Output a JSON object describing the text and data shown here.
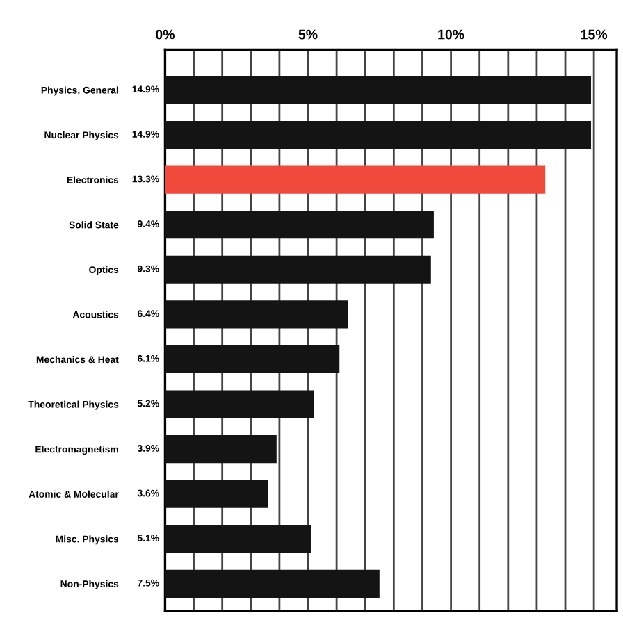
{
  "chart_data": {
    "type": "bar",
    "orientation": "horizontal",
    "categories": [
      "Physics, General",
      "Nuclear Physics",
      "Electronics",
      "Solid State",
      "Optics",
      "Acoustics",
      "Mechanics & Heat",
      "Theoretical Physics",
      "Electromagnetism",
      "Atomic & Molecular",
      "Misc. Physics",
      "Non-Physics"
    ],
    "values": [
      14.9,
      14.9,
      13.3,
      9.4,
      9.3,
      6.4,
      6.1,
      5.2,
      3.9,
      3.6,
      5.1,
      7.5
    ],
    "colors": [
      "#141414",
      "#141414",
      "#f04a3c",
      "#141414",
      "#141414",
      "#141414",
      "#141414",
      "#141414",
      "#141414",
      "#141414",
      "#141414",
      "#141414"
    ],
    "value_labels": [
      "14.9%",
      "14.9%",
      "13.3%",
      "9.4%",
      "9.3%",
      "6.4%",
      "6.1%",
      "5.2%",
      "3.9%",
      "3.6%",
      "5.1%",
      "7.5%"
    ],
    "xlim": [
      0,
      15.8
    ],
    "xticks": [
      {
        "value": 0,
        "label": "0%"
      },
      {
        "value": 1,
        "label": null
      },
      {
        "value": 2,
        "label": null
      },
      {
        "value": 3,
        "label": null
      },
      {
        "value": 4,
        "label": null
      },
      {
        "value": 5,
        "label": "5%"
      },
      {
        "value": 6,
        "label": null
      },
      {
        "value": 7,
        "label": null
      },
      {
        "value": 8,
        "label": null
      },
      {
        "value": 9,
        "label": null
      },
      {
        "value": 10,
        "label": "10%"
      },
      {
        "value": 11,
        "label": null
      },
      {
        "value": 12,
        "label": null
      },
      {
        "value": 13,
        "label": null
      },
      {
        "value": 14,
        "label": null
      },
      {
        "value": 15,
        "label": "15%"
      }
    ],
    "grid": "x"
  }
}
